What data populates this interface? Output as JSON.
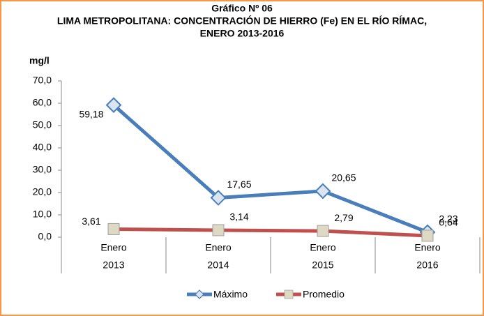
{
  "chart_data": {
    "type": "line",
    "title": "Gráfico Nº 06",
    "subtitle": [
      "LIMA METROPOLITANA: CONCENTRACIÓN DE HIERRO (Fe) EN EL RÍO RÍMAC,",
      "ENERO 2013-2016"
    ],
    "y_label": "mg/l",
    "categories": [
      [
        "Enero",
        "2013"
      ],
      [
        "Enero",
        "2014"
      ],
      [
        "Enero",
        "2015"
      ],
      [
        "Enero",
        "2016"
      ]
    ],
    "series": [
      {
        "name": "Máximo",
        "color": "#4a7ebb",
        "marker": "diamond",
        "values": [
          59.18,
          17.65,
          20.65,
          2.23
        ],
        "value_labels": [
          "59,18",
          "17,65",
          "20,65",
          "2,23"
        ]
      },
      {
        "name": "Promedio",
        "color": "#c0504d",
        "marker": "square",
        "values": [
          3.61,
          3.14,
          2.79,
          0.64
        ],
        "value_labels": [
          "3,61",
          "3,14",
          "2,79",
          "0,64"
        ]
      }
    ],
    "ylim": [
      0,
      70
    ],
    "yticks": [
      {
        "value": 0,
        "label": "0,0"
      },
      {
        "value": 10,
        "label": "10,0"
      },
      {
        "value": 20,
        "label": "20,0"
      },
      {
        "value": 30,
        "label": "30,0"
      },
      {
        "value": 40,
        "label": "40,0"
      },
      {
        "value": 50,
        "label": "50,0"
      },
      {
        "value": 60,
        "label": "60,0"
      },
      {
        "value": 70,
        "label": "70,0"
      }
    ],
    "legend": "bottom"
  }
}
